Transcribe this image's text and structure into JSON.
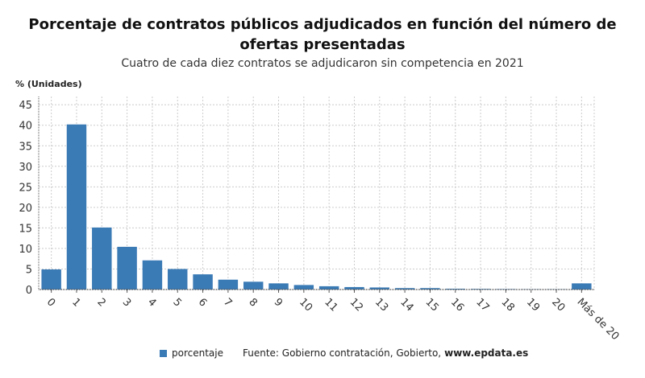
{
  "chart_data": {
    "type": "bar",
    "title": "Porcentaje de contratos públicos adjudicados en función del número de ofertas presentadas",
    "subtitle": "Cuatro de cada diez contratos se adjudicaron sin competencia en 2021",
    "ylabel": "% (Unidades)",
    "xlabel": "",
    "ylim": [
      0,
      47
    ],
    "yticks": [
      0,
      5,
      10,
      15,
      20,
      25,
      30,
      35,
      40,
      45
    ],
    "grid": true,
    "legend_position": "bottom",
    "categories": [
      "0",
      "1",
      "2",
      "3",
      "4",
      "5",
      "6",
      "7",
      "8",
      "9",
      "10",
      "11",
      "12",
      "13",
      "14",
      "15",
      "16",
      "17",
      "18",
      "19",
      "20",
      "Más de 20"
    ],
    "series": [
      {
        "name": "porcentaje",
        "color": "#3a7ab5",
        "values": [
          4.9,
          40.2,
          15.1,
          10.4,
          7.1,
          5.0,
          3.7,
          2.4,
          1.9,
          1.5,
          1.1,
          0.8,
          0.6,
          0.5,
          0.35,
          0.35,
          0.2,
          0.15,
          0.1,
          0.05,
          0.05,
          1.5
        ]
      }
    ]
  },
  "footer": {
    "source": "Fuente: Gobierno contratación, Gobierto,",
    "site": "www.epdata.es"
  }
}
